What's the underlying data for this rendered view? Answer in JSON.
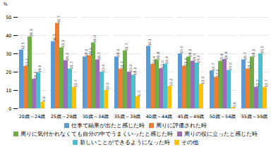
{
  "chart_data": {
    "type": "bar",
    "ylabel": "%",
    "categories": [
      "20歳～24歳",
      "25歳～29歳",
      "30歳～34歳",
      "35歳～39歳",
      "40歳～44歳",
      "45歳～49歳",
      "50歳～54歳",
      "55歳～59歳"
    ],
    "series": [
      {
        "name": "仕事で結果が出たと感じた時",
        "color": "#5b9bd5",
        "values": [
          32.1,
          36.7,
          28.3,
          28.3,
          34.1,
          30.0,
          20.7,
          26.7
        ],
        "value_labels": [
          "32.1",
          "36.7",
          "28.3",
          "28.3",
          "34.1",
          "30.0",
          "20.7",
          "26.7"
        ]
      },
      {
        "name": "周りに評価された時",
        "color": "#ed7d31",
        "values": [
          23.2,
          46.7,
          29.0,
          21.7,
          24.4,
          23.3,
          17.2,
          21.7
        ],
        "value_labels": [
          "23.2",
          "46.7",
          "29.0",
          "21.7",
          "24.4",
          "23.3",
          "17.2",
          "21.7"
        ]
      },
      {
        "name": "周りに気付かれなくても自分の中でうまくいったと感じた時",
        "color": "#70ad47",
        "values": [
          39.3,
          33.3,
          36.0,
          31.7,
          26.8,
          28.3,
          25.9,
          28.3
        ],
        "value_labels": [
          "39.3",
          "33.3",
          "36.0",
          "31.7",
          "26.8",
          "28.3",
          "25.9",
          "28.3"
        ]
      },
      {
        "name": "周りの役に立ったと感じた時",
        "color": "#9e6bb5",
        "values": [
          16.1,
          26.3,
          26.7,
          20.0,
          22.0,
          26.0,
          26.9,
          11.7
        ],
        "value_labels": [
          "16.1",
          "26.3",
          "26.7",
          "20.0",
          "22.0",
          "26.0",
          "26.9",
          "11.7"
        ]
      },
      {
        "name": "新しいことができるようになった時",
        "color": "#4bbfcd",
        "values": [
          19.6,
          21.7,
          20.0,
          18.3,
          24.4,
          25.0,
          21.0,
          30.0
        ],
        "value_labels": [
          "19.6",
          "21.7",
          "20.0",
          "18.3",
          "24.4",
          "25.0",
          "21.0",
          "30.0"
        ]
      },
      {
        "name": "その他",
        "color": "#ffc000",
        "values": [
          3.6,
          11.7,
          10.0,
          6.7,
          12.2,
          13.3,
          0.6,
          11.7
        ],
        "value_labels": [
          "3.6",
          "11.7",
          "10.0",
          "6.7",
          "12.2",
          "13.3",
          "0.6",
          "11.7"
        ]
      }
    ],
    "ylim": [
      0,
      50
    ],
    "yticks": [
      0,
      10,
      20,
      30,
      40,
      50
    ],
    "grid": true,
    "data_labels": true,
    "legend": "bottom"
  }
}
